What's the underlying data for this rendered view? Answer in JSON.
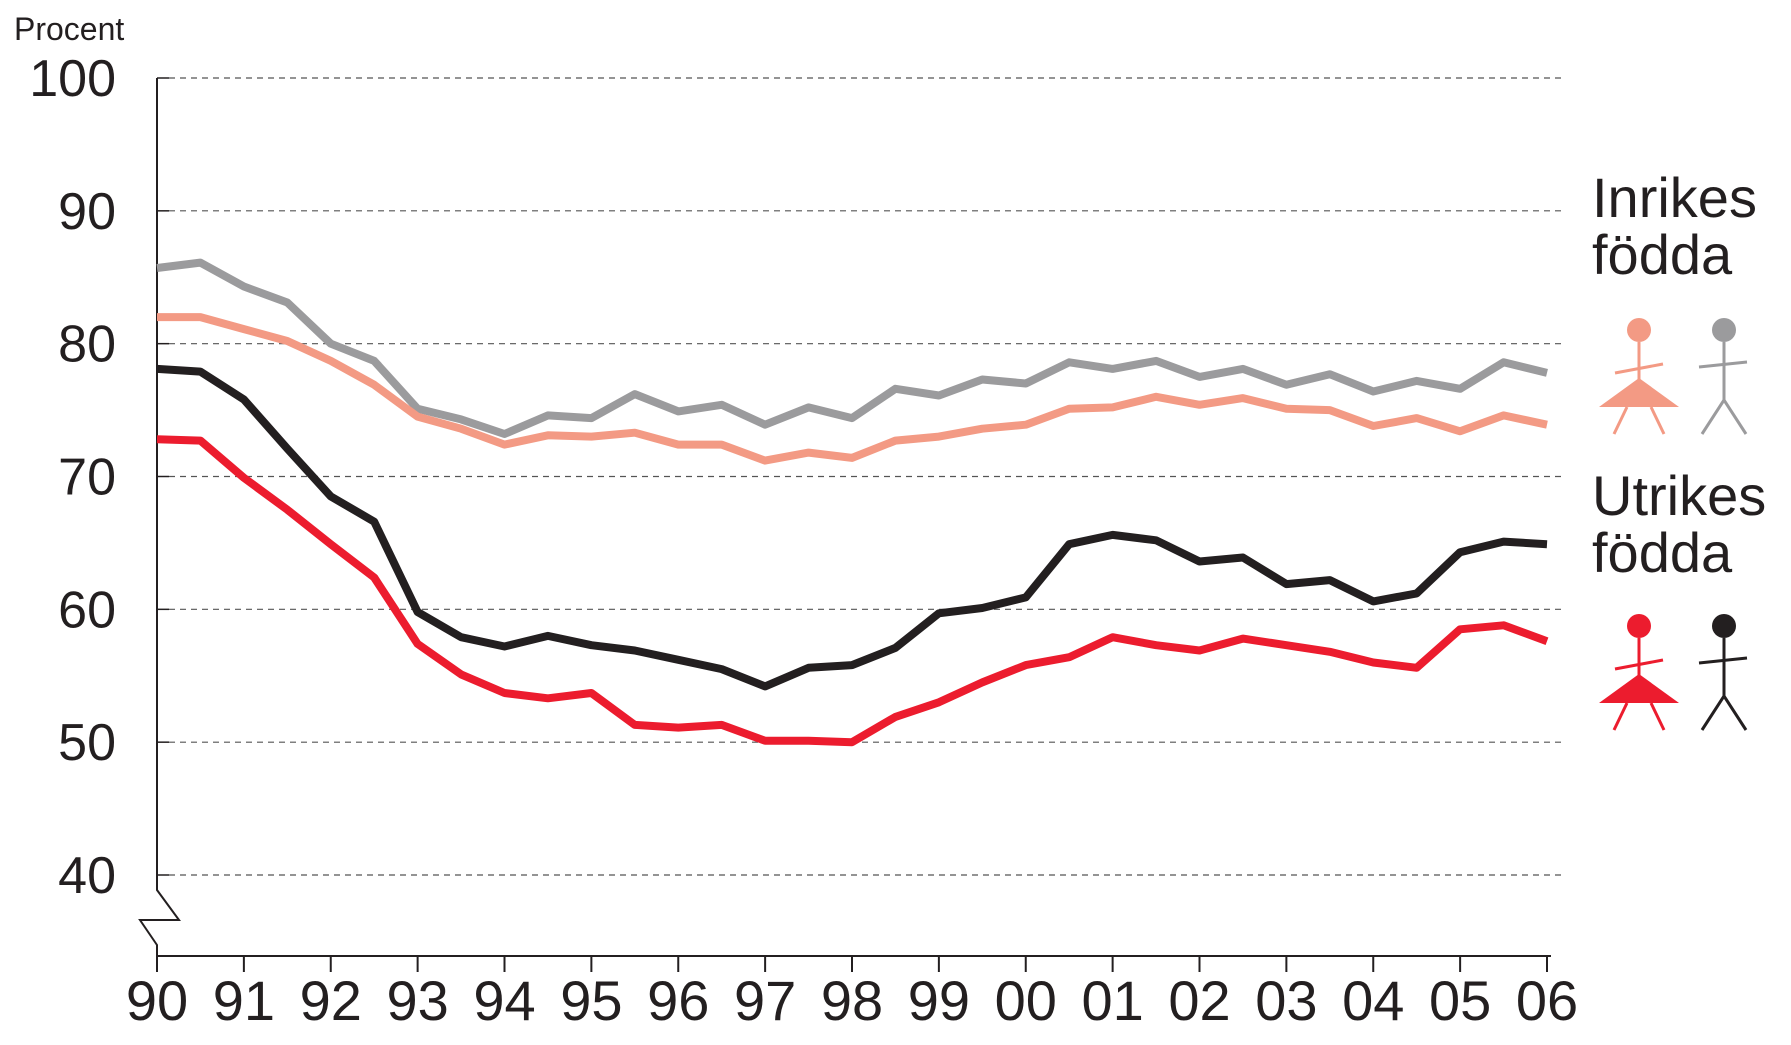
{
  "chart_data": {
    "type": "line",
    "ylabel": "Procent",
    "x": [
      1990,
      1990.5,
      1991,
      1991.5,
      1992,
      1992.5,
      1993,
      1993.5,
      1994,
      1994.5,
      1995,
      1995.5,
      1996,
      1996.5,
      1997,
      1997.5,
      1998,
      1998.5,
      1999,
      1999.5,
      2000,
      2000.5,
      2001,
      2001.5,
      2002,
      2002.5,
      2003,
      2003.5,
      2004,
      2004.5,
      2005,
      2005.5,
      2006
    ],
    "xlim": [
      1990,
      2006
    ],
    "xticks": [
      {
        "value": 1990,
        "label": "90"
      },
      {
        "value": 1991,
        "label": "91"
      },
      {
        "value": 1992,
        "label": "92"
      },
      {
        "value": 1993,
        "label": "93"
      },
      {
        "value": 1994,
        "label": "94"
      },
      {
        "value": 1995,
        "label": "95"
      },
      {
        "value": 1996,
        "label": "96"
      },
      {
        "value": 1997,
        "label": "97"
      },
      {
        "value": 1998,
        "label": "98"
      },
      {
        "value": 1999,
        "label": "99"
      },
      {
        "value": 2000,
        "label": "00"
      },
      {
        "value": 2001,
        "label": "01"
      },
      {
        "value": 2002,
        "label": "02"
      },
      {
        "value": 2003,
        "label": "03"
      },
      {
        "value": 2004,
        "label": "04"
      },
      {
        "value": 2005,
        "label": "05"
      },
      {
        "value": 2006,
        "label": "06"
      }
    ],
    "ylim": [
      40,
      100
    ],
    "yticks": [
      40,
      50,
      60,
      70,
      80,
      90,
      100
    ],
    "grid": true,
    "series": [
      {
        "color": "#9b9b9d",
        "values": [
          85.7,
          86.1,
          84.3,
          83.1,
          80.0,
          78.7,
          75.1,
          74.3,
          73.2,
          74.6,
          74.4,
          76.2,
          74.9,
          75.4,
          73.9,
          75.2,
          74.4,
          76.6,
          76.1,
          77.3,
          77.0,
          78.6,
          78.1,
          78.7,
          77.5,
          78.1,
          76.9,
          77.7,
          76.4,
          77.2,
          76.6,
          78.6,
          77.8
        ]
      },
      {
        "color": "#f39a84",
        "values": [
          82.0,
          82.0,
          81.1,
          80.2,
          78.7,
          76.9,
          74.5,
          73.6,
          72.4,
          73.1,
          73.0,
          73.3,
          72.4,
          72.4,
          71.2,
          71.8,
          71.4,
          72.7,
          73.0,
          73.6,
          73.9,
          75.1,
          75.2,
          76.0,
          75.4,
          75.9,
          75.1,
          75.0,
          73.8,
          74.4,
          73.4,
          74.6,
          73.9
        ]
      },
      {
        "color": "#231f20",
        "values": [
          78.1,
          77.9,
          75.8,
          72.1,
          68.5,
          66.6,
          59.8,
          57.9,
          57.2,
          58.0,
          57.3,
          56.9,
          56.2,
          55.5,
          54.2,
          55.6,
          55.8,
          57.1,
          59.7,
          60.1,
          60.9,
          64.9,
          65.6,
          65.2,
          63.6,
          63.9,
          61.9,
          62.2,
          60.6,
          61.2,
          64.3,
          65.1,
          64.9
        ]
      },
      {
        "color": "#ec1c2e",
        "values": [
          72.8,
          72.7,
          69.9,
          67.5,
          64.9,
          62.4,
          57.4,
          55.1,
          53.7,
          53.3,
          53.7,
          51.3,
          51.1,
          51.3,
          50.1,
          50.1,
          50.0,
          51.9,
          53.0,
          54.5,
          55.8,
          56.4,
          57.9,
          57.3,
          56.9,
          57.8,
          57.3,
          56.8,
          56.0,
          55.6,
          58.5,
          58.8,
          57.6
        ]
      }
    ],
    "legend_groups": [
      {
        "lines": [
          "Inrikes",
          "födda"
        ],
        "woman": 1,
        "man": 0
      },
      {
        "lines": [
          "Utrikes",
          "födda"
        ],
        "woman": 3,
        "man": 2
      }
    ]
  }
}
